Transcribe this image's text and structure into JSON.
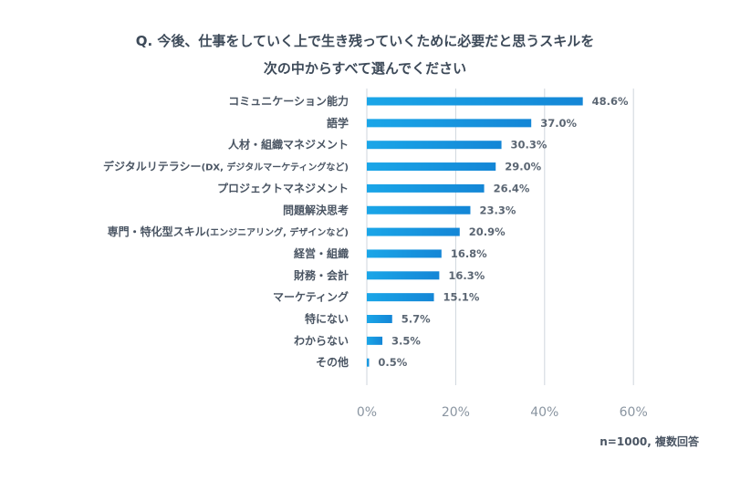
{
  "title": {
    "line1": "Q. 今後、仕事をしていく上で生き残っていくために必要だと思うスキルを",
    "line2": "次の中からすべて選んでください"
  },
  "note": "n=1000, 複数回答",
  "colors": {
    "bar_start": "#1aa6e8",
    "bar_end": "#1486d6",
    "text": "#4a5563",
    "grid": "#cfd6dd"
  },
  "chart_data": {
    "type": "bar",
    "orientation": "horizontal",
    "categories": [
      "コミュニケーション能力",
      "語学",
      "人材・組織マネジメント",
      "デジタルリテラシー(DX, デジタルマーケティングなど)",
      "プロジェクトマネジメント",
      "問題解決思考",
      "専門・特化型スキル(エンジニアリング, デザインなど)",
      "経営・組織",
      "財務・会計",
      "マーケティング",
      "特にない",
      "わからない",
      "その他"
    ],
    "values": [
      48.6,
      37.0,
      30.3,
      29.0,
      26.4,
      23.3,
      20.9,
      16.8,
      16.3,
      15.1,
      5.7,
      3.5,
      0.5
    ],
    "value_labels": [
      "48.6%",
      "37.0%",
      "30.3%",
      "29.0%",
      "26.4%",
      "23.3%",
      "20.9%",
      "16.8%",
      "16.3%",
      "15.1%",
      "5.7%",
      "3.5%",
      "0.5%"
    ],
    "xlim": [
      0,
      60
    ],
    "xticks": [
      0,
      20,
      40,
      60
    ],
    "xtick_labels": [
      "0%",
      "20%",
      "40%",
      "60%"
    ],
    "grid": true
  }
}
